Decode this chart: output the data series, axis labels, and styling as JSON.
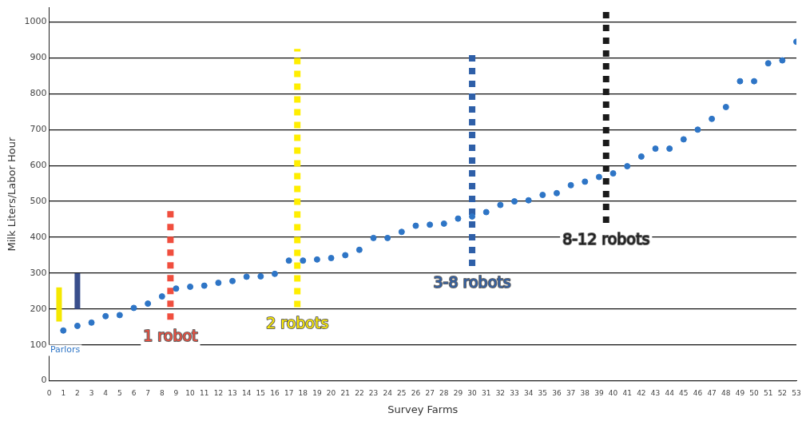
{
  "chart_data": {
    "type": "scatter",
    "xlabel": "Survey Farms",
    "ylabel": "Milk Liters/Labor Hour",
    "xlim": [
      0,
      53
    ],
    "xticks": [
      0,
      1,
      2,
      3,
      4,
      5,
      6,
      7,
      8,
      9,
      10,
      11,
      12,
      13,
      14,
      15,
      16,
      17,
      18,
      19,
      20,
      21,
      22,
      23,
      24,
      25,
      26,
      27,
      28,
      29,
      30,
      31,
      32,
      33,
      34,
      35,
      36,
      37,
      38,
      39,
      40,
      41,
      42,
      43,
      44,
      45,
      46,
      47,
      48,
      49,
      50,
      51,
      52,
      53
    ],
    "ylim": [
      0,
      1040
    ],
    "yticks": [
      0,
      100,
      200,
      300,
      400,
      500,
      600,
      700,
      800,
      900,
      1000
    ],
    "grid": "y",
    "legend": false,
    "series": [
      {
        "color": "#2e75c6",
        "marker": "circle",
        "x": [
          1,
          2,
          3,
          4,
          5,
          6,
          7,
          8,
          9,
          10,
          11,
          12,
          13,
          14,
          15,
          16,
          17,
          18,
          19,
          20,
          21,
          22,
          23,
          24,
          25,
          26,
          27,
          28,
          29,
          30,
          31,
          32,
          33,
          34,
          35,
          36,
          37,
          38,
          39,
          40,
          41,
          42,
          43,
          44,
          45,
          46,
          47,
          48,
          49,
          50,
          51,
          52,
          53
        ],
        "values": [
          140,
          153,
          162,
          180,
          183,
          203,
          215,
          235,
          257,
          262,
          265,
          273,
          278,
          290,
          291,
          298,
          335,
          335,
          338,
          342,
          350,
          365,
          398,
          398,
          415,
          432,
          435,
          438,
          452,
          458,
          470,
          490,
          500,
          503,
          518,
          523,
          545,
          555,
          568,
          578,
          598,
          625,
          647,
          647,
          673,
          700,
          730,
          763,
          835,
          835,
          885,
          893,
          945
        ]
      },
      {
        "type": "line",
        "color": "#f5e800",
        "marker": "none",
        "line_style": "solid",
        "x": [
          0.7,
          0.7
        ],
        "values": [
          165,
          260
        ]
      },
      {
        "type": "line",
        "color": "#3a4f8c",
        "marker": "none",
        "line_style": "solid",
        "x": [
          2,
          2
        ],
        "values": [
          200,
          300
        ]
      },
      {
        "type": "line",
        "name": "1 robot",
        "color": "#f04e3e",
        "marker": "none",
        "line_style": "dashed",
        "x": [
          8.6,
          8.6
        ],
        "values": [
          170,
          485
        ]
      },
      {
        "type": "line",
        "name": "2 robots",
        "color": "#ffee00",
        "marker": "none",
        "line_style": "dashed",
        "x": [
          17.6,
          17.6
        ],
        "values": [
          205,
          925
        ]
      },
      {
        "type": "line",
        "name": "3-8 robots",
        "color": "#2e5fa8",
        "marker": "none",
        "line_style": "dashed",
        "x": [
          30,
          30
        ],
        "values": [
          320,
          910
        ]
      },
      {
        "type": "line",
        "name": "8-12 robots",
        "color": "#1a1a1a",
        "marker": "none",
        "line_style": "dashed",
        "x": [
          39.5,
          39.5
        ],
        "values": [
          440,
          1035
        ]
      }
    ],
    "annotations": [
      "Parlors"
    ]
  }
}
